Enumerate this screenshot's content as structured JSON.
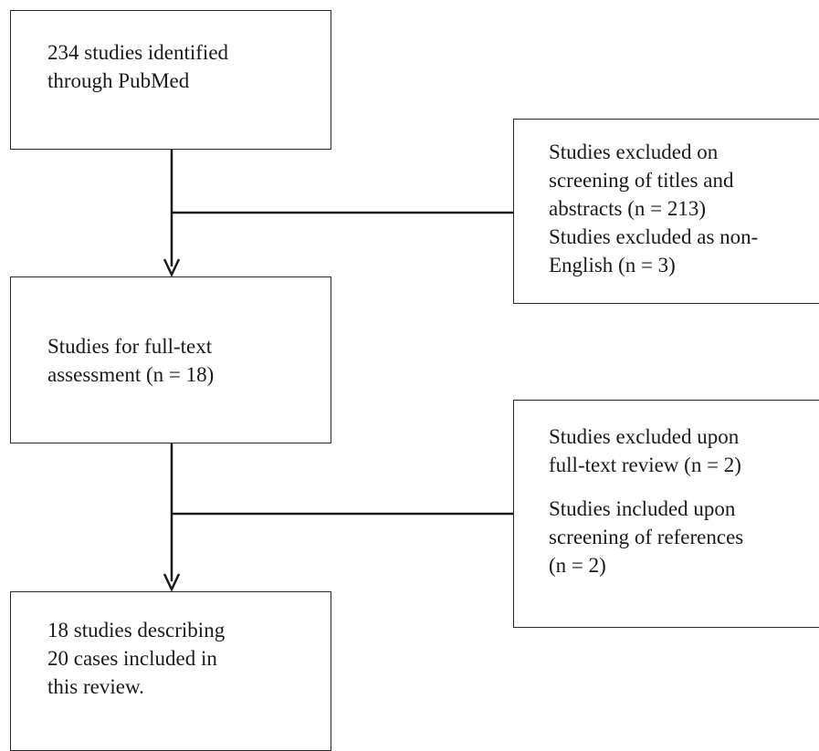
{
  "flowchart": {
    "identified": {
      "lines": [
        "234 studies identified",
        "through PubMed"
      ]
    },
    "excluded_screening": {
      "lines": [
        "Studies excluded on",
        "screening of titles and",
        "abstracts (n = 213)",
        "Studies excluded as non-",
        "English (n = 3)"
      ]
    },
    "full_text": {
      "lines": [
        "Studies for full-text",
        "assessment (n = 18)"
      ]
    },
    "excluded_review": {
      "group1": [
        "Studies excluded upon",
        "full-text review (n = 2)"
      ],
      "group2": [
        "Studies included upon",
        "screening of references",
        "(n = 2)"
      ]
    },
    "included": {
      "lines": [
        "18 studies describing",
        "20 cases included in",
        "this review."
      ]
    }
  }
}
